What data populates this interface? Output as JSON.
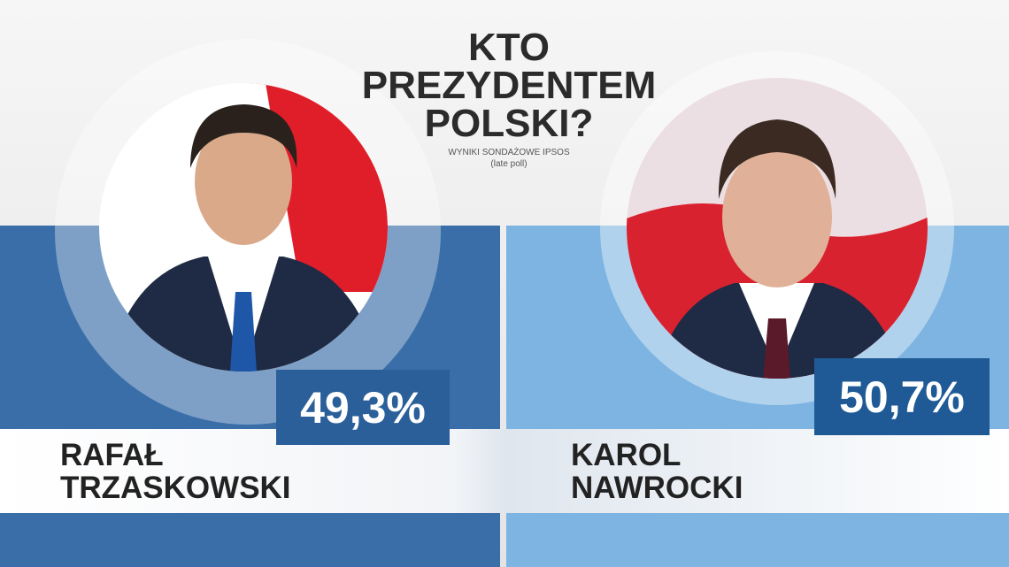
{
  "header": {
    "title_lines": [
      "KTO",
      "PREZYDENTEM",
      "POLSKI?"
    ],
    "subtitle": "WYNIKI SONDAŻOWE IPSOS",
    "note": "(late poll)"
  },
  "candidates": [
    {
      "name_lines": [
        "RAFAŁ",
        "TRZASKOWSKI"
      ],
      "result": "49,3%"
    },
    {
      "name_lines": [
        "KAROL",
        "NAWROCKI"
      ],
      "result": "50,7%"
    }
  ]
}
